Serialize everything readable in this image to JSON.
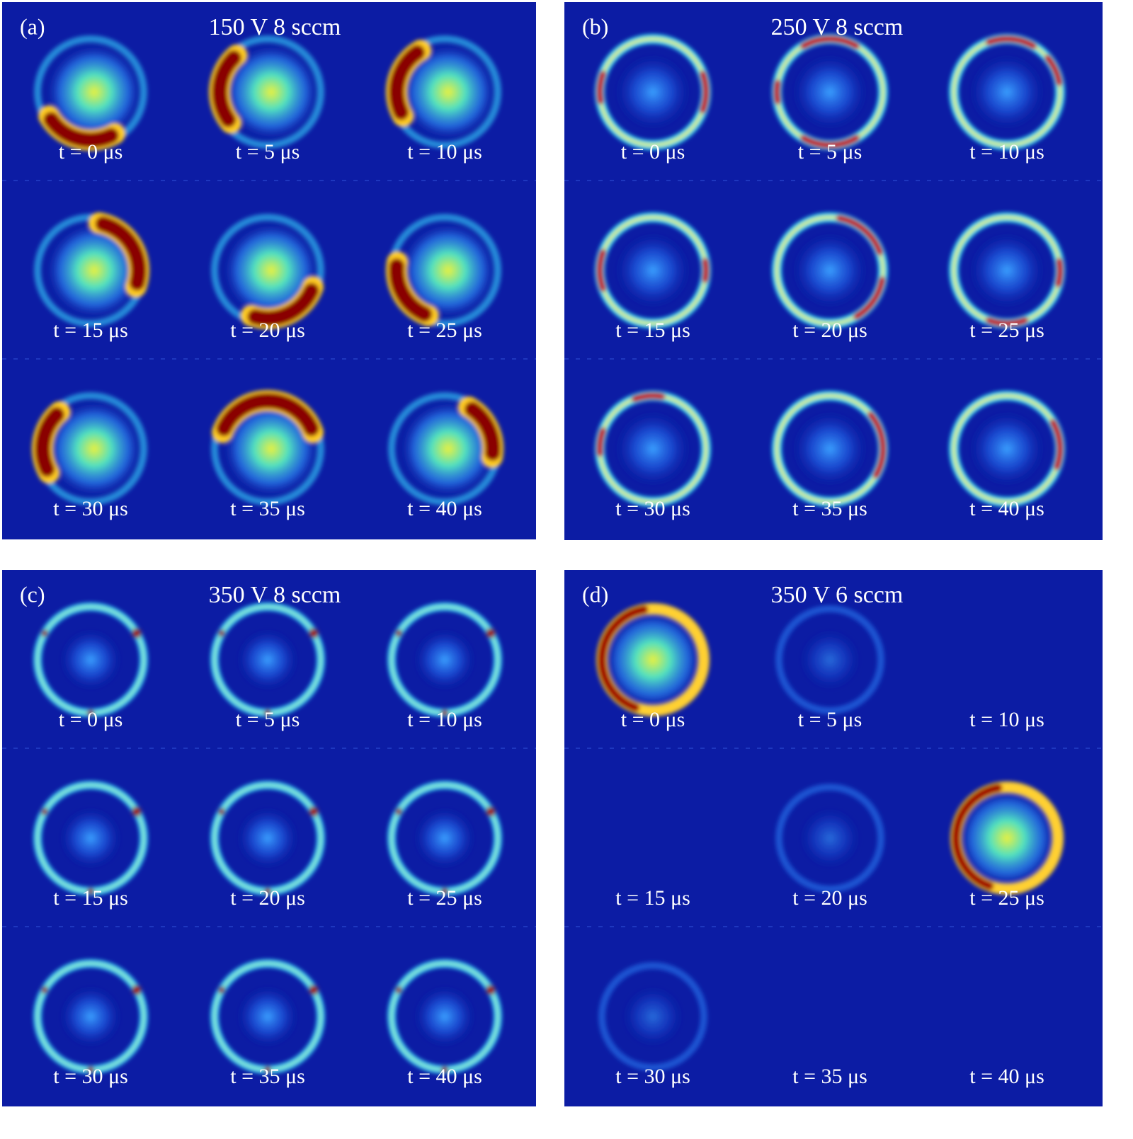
{
  "figure": {
    "panels": [
      {
        "label": "(a)",
        "title": "150 V 8 sccm",
        "frames": [
          "t = 0 μs",
          "t = 5 μs",
          "t = 10 μs",
          "t = 15 μs",
          "t = 20 μs",
          "t = 25 μs",
          "t = 30 μs",
          "t = 35 μs",
          "t = 40 μs"
        ]
      },
      {
        "label": "(b)",
        "title": "250 V 8 sccm",
        "frames": [
          "t = 0 μs",
          "t = 5 μs",
          "t = 10 μs",
          "t = 15 μs",
          "t = 20 μs",
          "t = 25 μs",
          "t = 30 μs",
          "t = 35 μs",
          "t = 40 μs"
        ]
      },
      {
        "label": "(c)",
        "title": "350 V 8 sccm",
        "frames": [
          "t = 0 μs",
          "t = 5 μs",
          "t = 10 μs",
          "t = 15 μs",
          "t = 20 μs",
          "t = 25 μs",
          "t = 30 μs",
          "t = 35 μs",
          "t = 40 μs"
        ]
      },
      {
        "label": "(d)",
        "title": "350 V 6 sccm",
        "frames": [
          "t = 0 μs",
          "t = 5 μs",
          "t = 10 μs",
          "t = 15 μs",
          "t = 20 μs",
          "t = 25 μs",
          "t = 30 μs",
          "t = 35 μs",
          "t = 40 μs"
        ]
      }
    ]
  }
}
